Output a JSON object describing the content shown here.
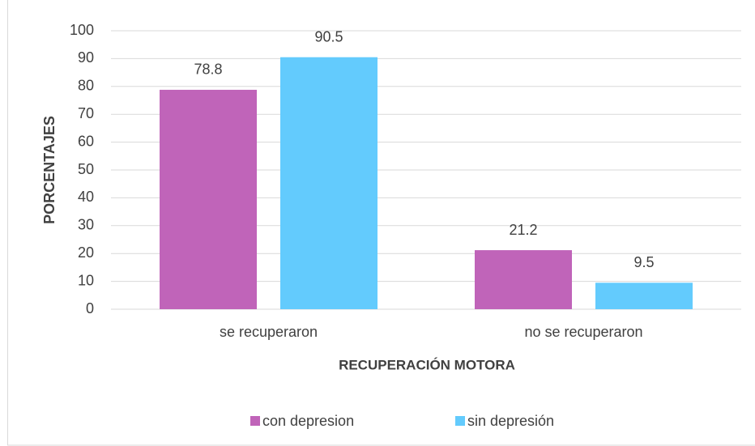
{
  "chart_data": {
    "type": "bar",
    "y_label": "PORCENTAJES",
    "x_label": "RECUPERACIÓN MOTORA",
    "categories": [
      "se recuperaron",
      "no se recuperaron"
    ],
    "series": [
      {
        "name": "con depresion",
        "color": "#c064b9",
        "values": [
          78.8,
          21.2
        ]
      },
      {
        "name": "sin depresión",
        "color": "#63cbfd",
        "values": [
          90.5,
          9.5
        ]
      }
    ],
    "ylim": [
      0,
      100
    ],
    "yticks": [
      0,
      10,
      20,
      30,
      40,
      50,
      60,
      70,
      80,
      90,
      100
    ],
    "grid": true,
    "legend": "bottom"
  }
}
